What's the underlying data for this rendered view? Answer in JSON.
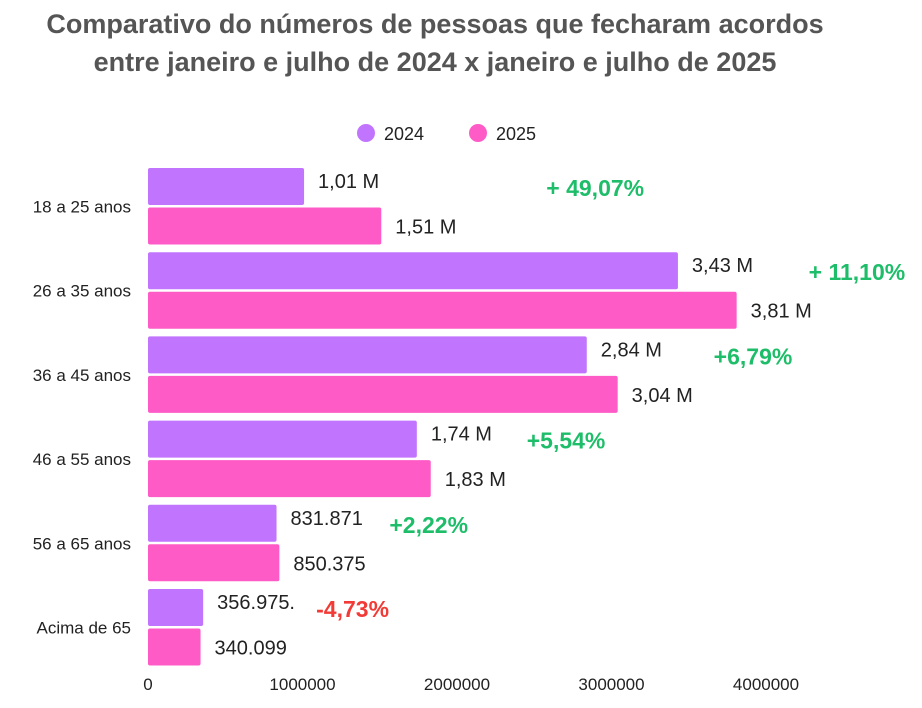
{
  "chart_data": {
    "type": "bar",
    "orientation": "horizontal",
    "title_lines": [
      "Comparativo do números de pessoas que fecharam acordos",
      "entre janeiro e julho de 2024 x janeiro e julho de 2025"
    ],
    "categories": [
      "18 a 25 anos",
      "26 a 35 anos",
      "36 a 45 anos",
      "46 a 55 anos",
      "56 a 65 anos",
      "Acima de 65"
    ],
    "series": [
      {
        "name": "2024",
        "color": "#c175ff",
        "values": [
          1010000,
          3430000,
          2840000,
          1740000,
          831871,
          356975
        ],
        "labels": [
          "1,01 M",
          "3,43 M",
          "2,84 M",
          "1,74 M",
          "831.871",
          "356.975."
        ]
      },
      {
        "name": "2025",
        "color": "#ff5bc6",
        "values": [
          1510000,
          3810000,
          3040000,
          1830000,
          850375,
          340099
        ],
        "labels": [
          "1,51 M",
          "3,81 M",
          "3,04 M",
          "1,83 M",
          "850.375",
          "340.099"
        ]
      }
    ],
    "changes": [
      {
        "text": "+ 49,07%",
        "color": "#1ebd69"
      },
      {
        "text": "+ 11,10%",
        "color": "#1ebd69"
      },
      {
        "text": "+6,79%",
        "color": "#1ebd69"
      },
      {
        "text": "+5,54%",
        "color": "#1ebd69"
      },
      {
        "text": "+2,22%",
        "color": "#1ebd69"
      },
      {
        "text": "-4,73%",
        "color": "#f23b36"
      }
    ],
    "xlim": [
      0,
      4000000
    ],
    "xticks": [
      0,
      1000000,
      2000000,
      3000000,
      4000000
    ],
    "xtick_labels": [
      "0",
      "1000000",
      "2000000",
      "3000000",
      "4000000"
    ],
    "legend_position": "top-center",
    "grid": false
  }
}
